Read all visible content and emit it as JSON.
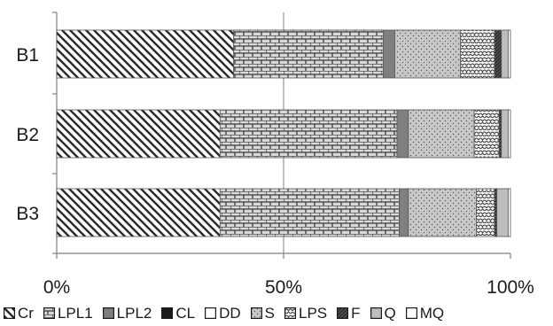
{
  "chart_data": {
    "type": "bar",
    "orientation": "horizontal",
    "stacked": "percent",
    "categories": [
      "B1",
      "B2",
      "B3"
    ],
    "xlim": [
      0,
      100
    ],
    "xticks": [
      "0%",
      "50%",
      "100%"
    ],
    "grid": "vertical at 50%",
    "legend_position": "bottom",
    "series": [
      {
        "name": "Cr",
        "pattern": "diagonal-hatch",
        "values": [
          39,
          36,
          36
        ]
      },
      {
        "name": "LPL1",
        "pattern": "brick",
        "values": [
          33,
          39,
          39.5
        ]
      },
      {
        "name": "LPL2",
        "pattern": "solid-gray",
        "values": [
          2.5,
          2.5,
          2
        ]
      },
      {
        "name": "CL",
        "pattern": "solid-black",
        "values": [
          0,
          0,
          0
        ]
      },
      {
        "name": "DD",
        "pattern": "white",
        "values": [
          0,
          0,
          0
        ]
      },
      {
        "name": "S",
        "pattern": "dots",
        "values": [
          14.5,
          14.5,
          15
        ]
      },
      {
        "name": "LPS",
        "pattern": "scale",
        "values": [
          7.5,
          5.5,
          4
        ]
      },
      {
        "name": "F",
        "pattern": "dark-hatch",
        "values": [
          1.5,
          0.5,
          0.5
        ]
      },
      {
        "name": "Q",
        "pattern": "light-gray",
        "values": [
          1.5,
          1.5,
          2.5
        ]
      },
      {
        "name": "MQ",
        "pattern": "white",
        "values": [
          0.5,
          0.5,
          0.5
        ]
      }
    ],
    "colors": {
      "axis": "#808080",
      "gridline": "#808080",
      "bar_outline": "#555555",
      "LPL2": "#7f7f7f",
      "CL": "#1a1a1a",
      "Q": "#bdbdbd"
    }
  }
}
